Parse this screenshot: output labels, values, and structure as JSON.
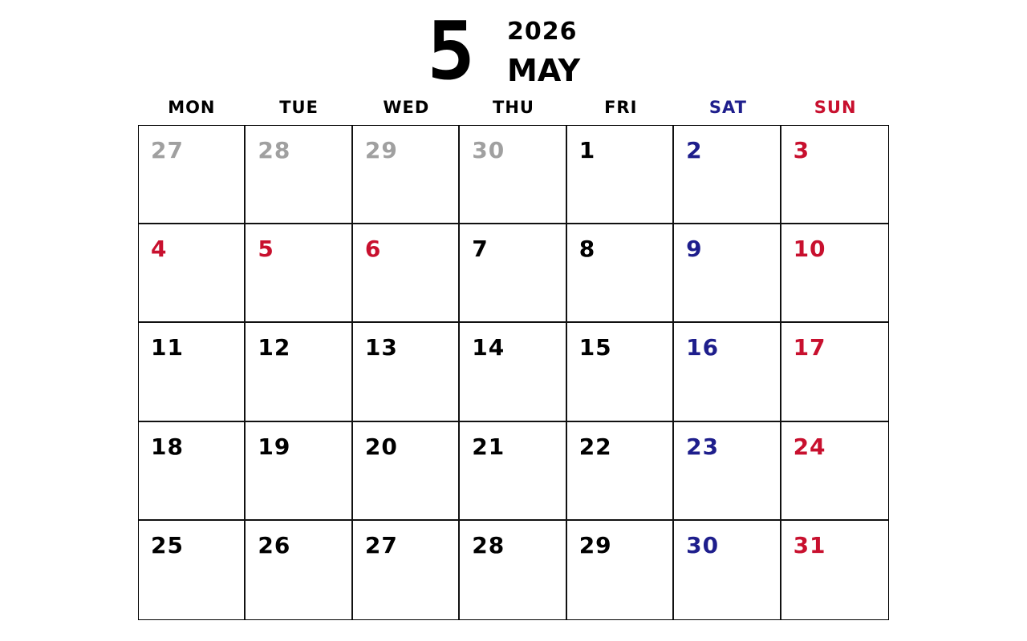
{
  "header": {
    "month_number": "5",
    "year": "2026",
    "month_name": "MAY"
  },
  "colors": {
    "weekday": "#000000",
    "saturday": "#1e1e8c",
    "sunday_holiday": "#c8102e",
    "other_month": "#a0a0a0"
  },
  "weekdays": [
    {
      "label": "MON",
      "type": "weekday"
    },
    {
      "label": "TUE",
      "type": "weekday"
    },
    {
      "label": "WED",
      "type": "weekday"
    },
    {
      "label": "THU",
      "type": "weekday"
    },
    {
      "label": "FRI",
      "type": "weekday"
    },
    {
      "label": "SAT",
      "type": "saturday"
    },
    {
      "label": "SUN",
      "type": "sunday_holiday"
    }
  ],
  "days": [
    {
      "day": "27",
      "type": "other_month"
    },
    {
      "day": "28",
      "type": "other_month"
    },
    {
      "day": "29",
      "type": "other_month"
    },
    {
      "day": "30",
      "type": "other_month"
    },
    {
      "day": "1",
      "type": "weekday"
    },
    {
      "day": "2",
      "type": "saturday"
    },
    {
      "day": "3",
      "type": "sunday_holiday"
    },
    {
      "day": "4",
      "type": "sunday_holiday"
    },
    {
      "day": "5",
      "type": "sunday_holiday"
    },
    {
      "day": "6",
      "type": "sunday_holiday"
    },
    {
      "day": "7",
      "type": "weekday"
    },
    {
      "day": "8",
      "type": "weekday"
    },
    {
      "day": "9",
      "type": "saturday"
    },
    {
      "day": "10",
      "type": "sunday_holiday"
    },
    {
      "day": "11",
      "type": "weekday"
    },
    {
      "day": "12",
      "type": "weekday"
    },
    {
      "day": "13",
      "type": "weekday"
    },
    {
      "day": "14",
      "type": "weekday"
    },
    {
      "day": "15",
      "type": "weekday"
    },
    {
      "day": "16",
      "type": "saturday"
    },
    {
      "day": "17",
      "type": "sunday_holiday"
    },
    {
      "day": "18",
      "type": "weekday"
    },
    {
      "day": "19",
      "type": "weekday"
    },
    {
      "day": "20",
      "type": "weekday"
    },
    {
      "day": "21",
      "type": "weekday"
    },
    {
      "day": "22",
      "type": "weekday"
    },
    {
      "day": "23",
      "type": "saturday"
    },
    {
      "day": "24",
      "type": "sunday_holiday"
    },
    {
      "day": "25",
      "type": "weekday"
    },
    {
      "day": "26",
      "type": "weekday"
    },
    {
      "day": "27",
      "type": "weekday"
    },
    {
      "day": "28",
      "type": "weekday"
    },
    {
      "day": "29",
      "type": "weekday"
    },
    {
      "day": "30",
      "type": "saturday"
    },
    {
      "day": "31",
      "type": "sunday_holiday"
    }
  ]
}
